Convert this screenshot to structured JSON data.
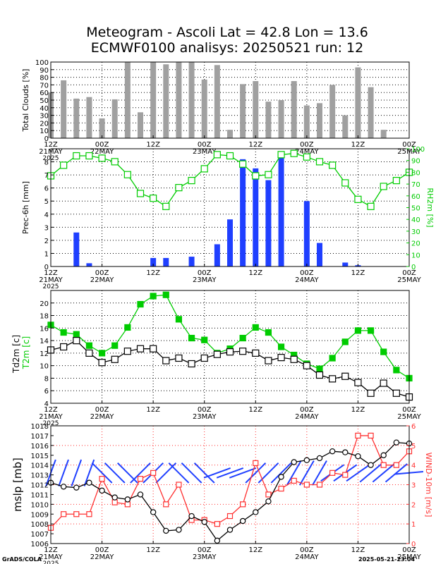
{
  "title_line1": "Meteogram - Ascoli Lat = 42.8 Lon = 13.6",
  "title_line2": "ECMWF0100 analisys: 20250521 run: 12",
  "footer_left": "GrADS/COLA",
  "footer_right": "2025-05-21-23:04",
  "colors": {
    "bars_gray": "#a0a0a0",
    "bars_blue": "#1f3fff",
    "green": "#00cc00",
    "red": "#ff3030",
    "wind_blue": "#2040ff",
    "black": "#000000"
  },
  "time_axis": {
    "tick_labels": [
      {
        "t": 0,
        "l1": "12Z",
        "l2": "21MAY",
        "l3": "2025"
      },
      {
        "t": 12,
        "l1": "00Z",
        "l2": "22MAY",
        "l3": ""
      },
      {
        "t": 24,
        "l1": "12Z",
        "l2": "",
        "l3": ""
      },
      {
        "t": 36,
        "l1": "00Z",
        "l2": "23MAY",
        "l3": ""
      },
      {
        "t": 48,
        "l1": "12Z",
        "l2": "",
        "l3": ""
      },
      {
        "t": 60,
        "l1": "00Z",
        "l2": "24MAY",
        "l3": ""
      },
      {
        "t": 72,
        "l1": "12Z",
        "l2": "",
        "l3": ""
      },
      {
        "t": 84,
        "l1": "00Z",
        "l2": "25MAY",
        "l3": ""
      }
    ]
  },
  "chart_data": [
    {
      "type": "bar",
      "ylabel": "Total Clouds [%]",
      "ylim": [
        0,
        100
      ],
      "yticks": [
        0,
        10,
        20,
        30,
        40,
        50,
        60,
        70,
        80,
        90,
        100
      ],
      "x_hours": [
        0,
        3,
        6,
        9,
        12,
        15,
        18,
        21,
        24,
        27,
        30,
        33,
        36,
        39,
        42,
        45,
        48,
        51,
        54,
        57,
        60,
        63,
        66,
        69,
        72,
        75,
        78
      ],
      "values": [
        60,
        76,
        52,
        54,
        26,
        51,
        100,
        34,
        100,
        97,
        100,
        100,
        77,
        96,
        11,
        71,
        75,
        48,
        50,
        75,
        43,
        46,
        70,
        30,
        93,
        67,
        11
      ]
    },
    {
      "type": "bar+line",
      "ylabel": "Prec-6h [mm]",
      "ylim": [
        0,
        9
      ],
      "yticks": [
        0,
        1,
        2,
        3,
        4,
        5,
        6,
        7,
        8
      ],
      "ylabel_right": "RH2m [%]",
      "ylim_right": [
        0,
        100
      ],
      "yticks_right": [
        0,
        10,
        20,
        30,
        40,
        50,
        60,
        70,
        80,
        90,
        100
      ],
      "precip_x_hours": [
        6,
        9,
        24,
        27,
        33,
        39,
        42,
        45,
        48,
        51,
        54,
        60,
        63,
        69,
        72
      ],
      "precip_values": [
        2.6,
        0.25,
        0.65,
        0.65,
        0.75,
        1.7,
        3.6,
        8.2,
        7.5,
        6.6,
        8.5,
        5.0,
        1.8,
        0.3,
        0.1
      ],
      "rh_x_hours": [
        0,
        3,
        6,
        9,
        12,
        15,
        18,
        21,
        24,
        27,
        30,
        33,
        36,
        39,
        42,
        45,
        48,
        51,
        54,
        57,
        60,
        63,
        66,
        69,
        72,
        75,
        78,
        81,
        84
      ],
      "rh_values": [
        77,
        86,
        94,
        94,
        92,
        89,
        78,
        62,
        58,
        51,
        67,
        73,
        83,
        95,
        94,
        87,
        77,
        78,
        95,
        96,
        93,
        89,
        86,
        71,
        57,
        51,
        68,
        73,
        80
      ]
    },
    {
      "type": "line",
      "ylabel": "Td2m [c]",
      "ylabel_right_inner": "T2m [c]",
      "ylim": [
        4,
        22
      ],
      "yticks": [
        4,
        6,
        8,
        10,
        12,
        14,
        16,
        18,
        20
      ],
      "x_hours": [
        0,
        3,
        6,
        9,
        12,
        15,
        18,
        21,
        24,
        27,
        30,
        33,
        36,
        39,
        42,
        45,
        48,
        51,
        54,
        57,
        60,
        63,
        66,
        69,
        72,
        75,
        78,
        81,
        84
      ],
      "t2m_values": [
        16.5,
        15.3,
        15.0,
        13.2,
        12.0,
        13.2,
        16.1,
        19.8,
        21.1,
        21.3,
        17.4,
        14.4,
        14.1,
        12.0,
        12.7,
        14.4,
        16.1,
        15.3,
        13.0,
        11.7,
        10.3,
        9.5,
        11.2,
        13.8,
        15.6,
        15.6,
        12.2,
        9.3,
        8.0
      ],
      "td2m_values": [
        12.5,
        13.0,
        14.0,
        12.0,
        10.5,
        11.0,
        12.3,
        12.7,
        12.7,
        10.8,
        11.2,
        10.3,
        11.2,
        11.8,
        12.2,
        12.3,
        12.0,
        10.8,
        11.3,
        11.0,
        10.0,
        8.5,
        7.9,
        8.3,
        7.3,
        5.6,
        7.2,
        5.6,
        5.0
      ]
    },
    {
      "type": "line",
      "ylabel": "mslp [mb]",
      "ylim": [
        1006,
        1018
      ],
      "yticks": [
        1006,
        1007,
        1008,
        1009,
        1010,
        1011,
        1012,
        1013,
        1014,
        1015,
        1016,
        1017,
        1018
      ],
      "ylabel_right": "WIND-10m [m/s]",
      "ylim_right": [
        0,
        6
      ],
      "yticks_right": [
        0,
        1,
        2,
        3,
        4,
        5,
        6
      ],
      "x_hours": [
        0,
        3,
        6,
        9,
        12,
        15,
        18,
        21,
        24,
        27,
        30,
        33,
        36,
        39,
        42,
        45,
        48,
        51,
        54,
        57,
        60,
        63,
        66,
        69,
        72,
        75,
        78,
        81,
        84
      ],
      "mslp_values": [
        1012.2,
        1011.8,
        1011.7,
        1012.2,
        1011.4,
        1010.7,
        1010.5,
        1011.0,
        1009.2,
        1007.3,
        1007.4,
        1008.8,
        1008.2,
        1006.3,
        1007.4,
        1008.3,
        1009.2,
        1010.3,
        1012.8,
        1014.3,
        1014.5,
        1014.7,
        1015.4,
        1015.3,
        1014.9,
        1014.0,
        1015.0,
        1016.3,
        1016.2
      ],
      "wind_values": [
        0.8,
        1.5,
        1.5,
        1.5,
        3.3,
        2.1,
        2.0,
        3.3,
        3.6,
        2.0,
        3.0,
        1.2,
        1.2,
        1.0,
        1.4,
        2.0,
        4.1,
        2.5,
        2.8,
        3.2,
        3.0,
        3.0,
        3.6,
        3.5,
        5.5,
        5.5,
        4.0,
        4.0,
        4.7
      ],
      "wind_dir_deg": [
        200,
        200,
        200,
        200,
        315,
        315,
        315,
        45,
        45,
        45,
        315,
        315,
        315,
        250,
        250,
        250,
        225,
        225,
        225,
        210,
        210,
        210,
        235,
        235,
        235,
        230,
        230,
        230,
        265
      ]
    }
  ]
}
